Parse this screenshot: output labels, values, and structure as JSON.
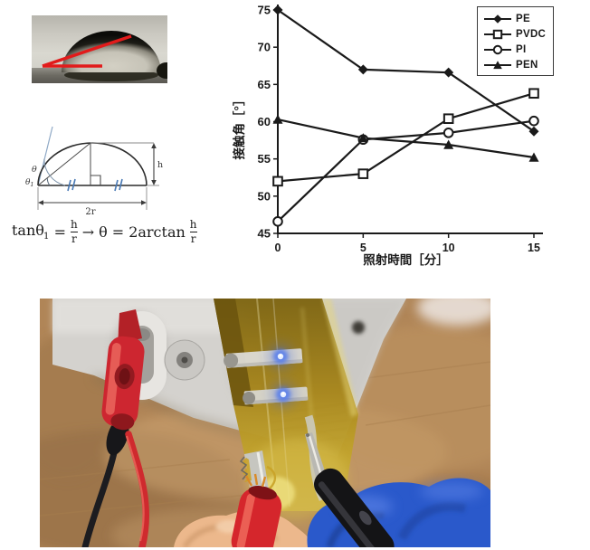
{
  "chart_data": {
    "type": "line",
    "title": "",
    "xlabel": "照射時間［分］",
    "ylabel": "接触角［°］",
    "x": [
      0,
      5,
      10,
      15
    ],
    "xticks": [
      0,
      5,
      10,
      15
    ],
    "yticks": [
      45,
      50,
      55,
      60,
      65,
      70,
      75
    ],
    "ylim": [
      45,
      75
    ],
    "xlim": [
      0,
      15
    ],
    "grid": false,
    "legend_position": "top-right",
    "line_color": "#1a1a1a",
    "series": [
      {
        "name": "PE",
        "marker": "diamond",
        "fill": "filled",
        "values": [
          75.0,
          67.0,
          66.6,
          58.7
        ]
      },
      {
        "name": "PVDC",
        "marker": "square",
        "fill": "open",
        "values": [
          52.0,
          53.0,
          60.4,
          63.8
        ]
      },
      {
        "name": "PI",
        "marker": "circle",
        "fill": "open",
        "values": [
          46.6,
          57.6,
          58.5,
          60.1
        ]
      },
      {
        "name": "PEN",
        "marker": "triangle",
        "fill": "filled",
        "values": [
          60.3,
          57.8,
          56.9,
          55.2
        ]
      }
    ]
  },
  "diagram": {
    "theta": "θ",
    "theta1": "θ",
    "theta1_sub": "1",
    "h_label": "h",
    "base_label": "2r"
  },
  "formula": {
    "lhs_fn": "tanθ",
    "lhs_sub": "1",
    "eq": "=",
    "frac1_num": "h",
    "frac1_den": "r",
    "arrow": "→",
    "theta": "θ",
    "eq2": "=",
    "fn2": "2arctan",
    "frac2_num": "h",
    "frac2_den": "r"
  },
  "colors": {
    "annotation_red": "#e21b1b",
    "diagram_tick_blue": "#4a7ab5",
    "tangent_blue": "#8fa9c6",
    "chart_line": "#1a1a1a",
    "film_gold": "#b3901c",
    "led_blue": "#4a74f0",
    "glove_blue": "#2a59cb",
    "clip_red": "#cd2630",
    "wood_brown": "#b08557",
    "device_gray": "#d4d2ce"
  }
}
